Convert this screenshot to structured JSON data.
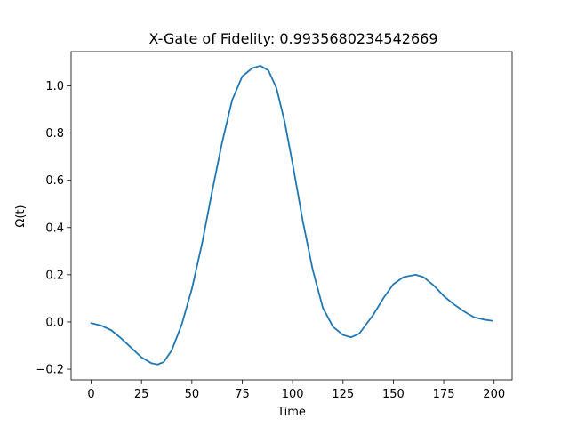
{
  "chart_data": {
    "type": "line",
    "title": "X-Gate of Fidelity: 0.9935680234542669",
    "xlabel": "Time",
    "ylabel": "Ω(t)",
    "xlim": [
      -9.95,
      208.95
    ],
    "ylim": [
      -0.245,
      1.145
    ],
    "xticks": [
      0,
      25,
      50,
      75,
      100,
      125,
      150,
      175,
      200
    ],
    "xtick_labels": [
      "0",
      "25",
      "50",
      "75",
      "100",
      "125",
      "150",
      "175",
      "200"
    ],
    "yticks": [
      -0.2,
      0.0,
      0.2,
      0.4,
      0.6,
      0.8,
      1.0
    ],
    "ytick_labels": [
      "−0.2",
      "0.0",
      "0.2",
      "0.4",
      "0.6",
      "0.8",
      "1.0"
    ],
    "grid": false,
    "series": [
      {
        "color": "#1f77b4",
        "x": [
          0,
          5,
          10,
          15,
          20,
          25,
          30,
          33,
          36,
          40,
          45,
          50,
          55,
          60,
          65,
          70,
          75,
          80,
          84,
          88,
          92,
          96,
          100,
          105,
          110,
          115,
          120,
          125,
          129,
          133,
          140,
          145,
          150,
          155,
          161,
          165,
          170,
          175,
          180,
          185,
          190,
          195,
          199
        ],
        "y": [
          -0.005,
          -0.015,
          -0.035,
          -0.07,
          -0.11,
          -0.15,
          -0.175,
          -0.18,
          -0.17,
          -0.12,
          -0.01,
          0.14,
          0.33,
          0.55,
          0.76,
          0.94,
          1.04,
          1.075,
          1.085,
          1.065,
          0.99,
          0.85,
          0.67,
          0.43,
          0.22,
          0.06,
          -0.02,
          -0.055,
          -0.065,
          -0.05,
          0.03,
          0.1,
          0.16,
          0.19,
          0.2,
          0.19,
          0.155,
          0.11,
          0.075,
          0.045,
          0.02,
          0.01,
          0.005
        ]
      }
    ]
  }
}
